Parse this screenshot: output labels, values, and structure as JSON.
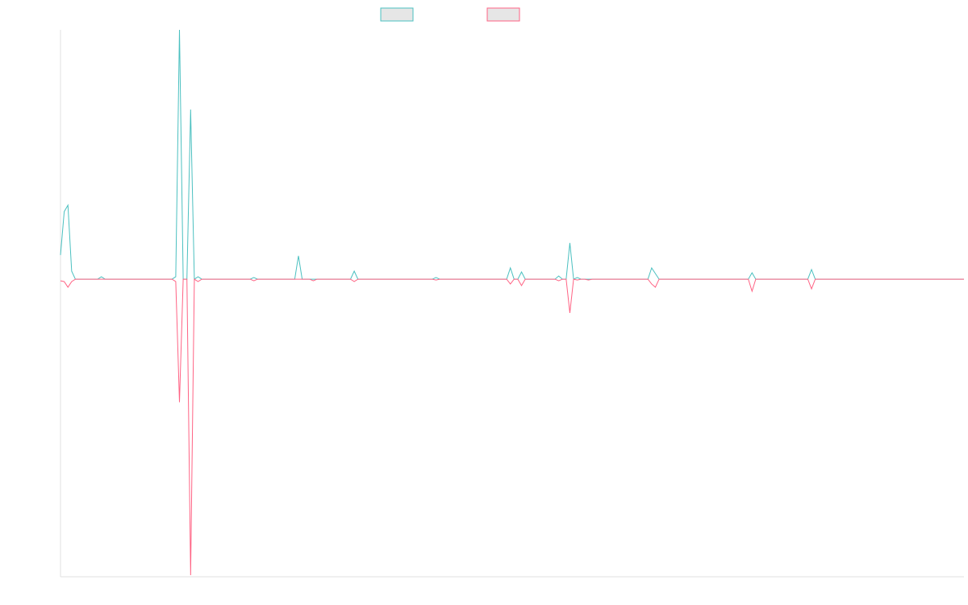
{
  "chart_data": {
    "type": "line",
    "ylim": [
      -370,
      310
    ],
    "series": [
      {
        "color": "#4bc0c0",
        "values": [
          30,
          84,
          92,
          10,
          0,
          0,
          0,
          0,
          0,
          0,
          0,
          3,
          0,
          0,
          0,
          0,
          0,
          0,
          0,
          0,
          0,
          0,
          0,
          0,
          0,
          0,
          0,
          0,
          0,
          0,
          0,
          3,
          310,
          0,
          0,
          211,
          0,
          3,
          0,
          0,
          0,
          0,
          0,
          0,
          0,
          0,
          0,
          0,
          0,
          0,
          0,
          0,
          2,
          0,
          0,
          0,
          0,
          0,
          0,
          0,
          0,
          0,
          0,
          0,
          29,
          0,
          0,
          0,
          0,
          0,
          0,
          0,
          0,
          0,
          0,
          0,
          0,
          0,
          0,
          10,
          0,
          0,
          0,
          0,
          0,
          0,
          0,
          0,
          0,
          0,
          0,
          0,
          0,
          0,
          0,
          0,
          0,
          0,
          0,
          0,
          0,
          2,
          0,
          0,
          0,
          0,
          0,
          0,
          0,
          0,
          0,
          0,
          0,
          0,
          0,
          0,
          0,
          0,
          0,
          0,
          0,
          14,
          0,
          0,
          9,
          0,
          0,
          0,
          0,
          0,
          0,
          0,
          0,
          0,
          4,
          0,
          0,
          45,
          0,
          2,
          0,
          0,
          0,
          0,
          0,
          0,
          0,
          0,
          0,
          0,
          0,
          0,
          0,
          0,
          0,
          0,
          0,
          0,
          0,
          14,
          7,
          0,
          0,
          0,
          0,
          0,
          0,
          0,
          0,
          0,
          0,
          0,
          0,
          0,
          0,
          0,
          0,
          0,
          0,
          0,
          0,
          0,
          0,
          0,
          0,
          0,
          8,
          0,
          0,
          0,
          0,
          0,
          0,
          0,
          0,
          0,
          0,
          0,
          0,
          0,
          0,
          0,
          12,
          0,
          0,
          0,
          0,
          0,
          0,
          0,
          0,
          0,
          0,
          0,
          0,
          0,
          0,
          0,
          0,
          0,
          0,
          0,
          0,
          0,
          0,
          0,
          0,
          0,
          0,
          0,
          0,
          0,
          0,
          0,
          0,
          0,
          0,
          0,
          0,
          0,
          0,
          0,
          0,
          0
        ]
      },
      {
        "color": "#ff6384",
        "values": [
          -2,
          -3,
          -10,
          -3,
          0,
          0,
          0,
          0,
          0,
          0,
          0,
          0,
          0,
          0,
          0,
          0,
          0,
          0,
          0,
          0,
          0,
          0,
          0,
          0,
          0,
          0,
          0,
          0,
          0,
          0,
          0,
          -3,
          -153,
          0,
          0,
          -368,
          0,
          -3,
          0,
          0,
          0,
          0,
          0,
          0,
          0,
          0,
          0,
          0,
          0,
          0,
          0,
          0,
          -2,
          0,
          0,
          0,
          0,
          0,
          0,
          0,
          0,
          0,
          0,
          0,
          0,
          0,
          0,
          0,
          -2,
          0,
          0,
          0,
          0,
          0,
          0,
          0,
          0,
          0,
          0,
          -3,
          0,
          0,
          0,
          0,
          0,
          0,
          0,
          0,
          0,
          0,
          0,
          0,
          0,
          0,
          0,
          0,
          0,
          0,
          0,
          0,
          0,
          -1,
          0,
          0,
          0,
          0,
          0,
          0,
          0,
          0,
          0,
          0,
          0,
          0,
          0,
          0,
          0,
          0,
          0,
          0,
          0,
          -6,
          0,
          0,
          -8,
          0,
          0,
          0,
          0,
          0,
          0,
          0,
          0,
          0,
          -2,
          0,
          0,
          -42,
          0,
          -1,
          0,
          0,
          -1,
          0,
          0,
          0,
          0,
          0,
          0,
          0,
          0,
          0,
          0,
          0,
          0,
          0,
          0,
          0,
          0,
          -6,
          -10,
          0,
          0,
          0,
          0,
          0,
          0,
          0,
          0,
          0,
          0,
          0,
          0,
          0,
          0,
          0,
          0,
          0,
          0,
          0,
          0,
          0,
          0,
          0,
          0,
          0,
          -15,
          0,
          0,
          0,
          0,
          0,
          0,
          0,
          0,
          0,
          0,
          0,
          0,
          0,
          0,
          0,
          -12,
          0,
          0,
          0,
          0,
          0,
          0,
          0,
          0,
          0,
          0,
          0,
          0,
          0,
          0,
          0,
          0,
          0,
          0,
          0,
          0,
          0,
          0,
          0,
          0,
          0,
          0,
          0,
          0,
          0,
          0,
          0,
          0,
          0,
          0,
          0,
          0,
          0,
          0,
          0,
          0,
          0
        ]
      }
    ]
  }
}
